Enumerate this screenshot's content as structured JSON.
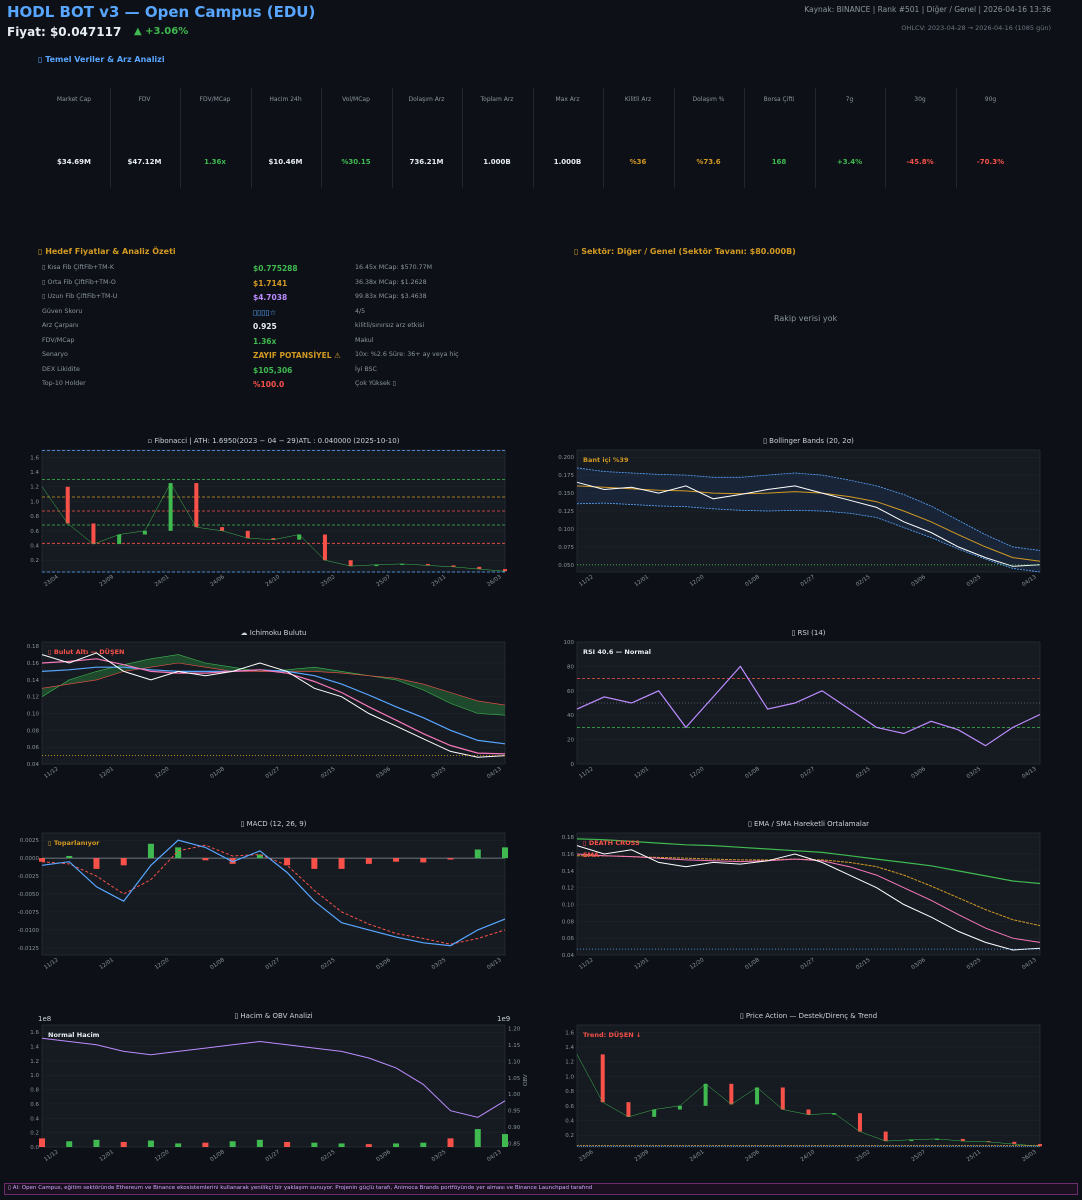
{
  "header": {
    "title": "HODL BOT v3 — Open Campus (EDU)",
    "price": "Fiyat: $0.047117",
    "change": "▲ +3.06%",
    "meta_line1": "Kaynak: BINANCE  |  Rank #501  |  Diğer / Genel  |  2026-04-16 13:36",
    "meta_line2": "OHLCV: 2023-04-28 → 2026-04-16  (1085 gün)"
  },
  "fundamentals": {
    "title": "▯ Temel Veriler & Arz Analizi",
    "metrics": [
      {
        "label": "Market Cap",
        "value": "$34.69M",
        "color": "#e6edf3"
      },
      {
        "label": "FDV",
        "value": "$47.12M",
        "color": "#e6edf3"
      },
      {
        "label": "FDV/MCap",
        "value": "1.36x",
        "color": "#3fb950"
      },
      {
        "label": "Hacim 24h",
        "value": "$10.46M",
        "color": "#e6edf3"
      },
      {
        "label": "Vol/MCap",
        "value": "%30.15",
        "color": "#3fb950"
      },
      {
        "label": "Dolaşım Arz",
        "value": "736.21M",
        "color": "#e6edf3"
      },
      {
        "label": "Toplam Arz",
        "value": "1.000B",
        "color": "#e6edf3"
      },
      {
        "label": "Max Arz",
        "value": "1.000B",
        "color": "#e6edf3"
      },
      {
        "label": "Kilitli Arz",
        "value": "%36",
        "color": "#d29922"
      },
      {
        "label": "Dolaşım %",
        "value": "%73.6",
        "color": "#d29922"
      },
      {
        "label": "Borsa Çifti",
        "value": "168",
        "color": "#3fb950"
      },
      {
        "label": "7g",
        "value": "+3.4%",
        "color": "#3fb950"
      },
      {
        "label": "30g",
        "value": "-45.8%",
        "color": "#f85149"
      },
      {
        "label": "90g",
        "value": "-70.3%",
        "color": "#f85149"
      }
    ]
  },
  "targets": {
    "title": "▯ Hedef Fiyatlar & Analiz Özeti",
    "rows": [
      {
        "label": "▯ Kısa  Fib ÇiftFib+TM-K",
        "value": "$0.775288",
        "value_color": "#3fb950",
        "note": "16.45x   MCap: $570.77M"
      },
      {
        "label": "▯ Orta  Fib ÇiftFib+TM-O",
        "value": "$1.7141",
        "value_color": "#d29922",
        "note": "36.38x   MCap: $1.2628"
      },
      {
        "label": "▯ Uzun  Fib ÇiftFib+TM-U",
        "value": "$4.7038",
        "value_color": "#bc8cff",
        "note": "99.83x   MCap: $3.4638"
      },
      {
        "label": "Güven Skoru",
        "value": "▯▯▯▯☆",
        "value_color": "#58a6ff",
        "note": "4/5"
      },
      {
        "label": "Arz Çarpanı",
        "value": "0.925",
        "value_color": "#e6edf3",
        "note": "kilitli/sınırsız arz etkisi"
      },
      {
        "label": "FDV/MCap",
        "value": "1.36x",
        "value_color": "#3fb950",
        "note": "Makul"
      },
      {
        "label": "Senaryo",
        "value": "ZAYIF POTANSİYEL ⚠",
        "value_color": "#d29922",
        "note": "10x: %2.6  Süre: 36+ ay veya hiç"
      },
      {
        "label": "DEX Likidite",
        "value": "$105,306",
        "value_color": "#3fb950",
        "note": "İyi  BSC"
      },
      {
        "label": "Top-10 Holder",
        "value": "%100.0",
        "value_color": "#f85149",
        "note": "Çok Yüksek ▯"
      }
    ]
  },
  "sector": {
    "title": "▯ Sektör: Diğer / Genel   (Sektör Tavanı: $80.000B)",
    "empty_text": "Rakip verisi yok"
  },
  "colors": {
    "accent": "#58a6ff",
    "up": "#3fb950",
    "down": "#f85149",
    "warn": "#d29922",
    "purple": "#bc8cff",
    "bg": "#0d1117",
    "panel": "#161b22"
  },
  "chart_data": [
    {
      "id": "fib",
      "type": "line",
      "title": "▫ Fibonacci  |  ATH: 1.6950(2023 − 04 − 29)ATL : 0.040000 (2025-10-10)",
      "x_ticks": [
        "23/04",
        "23/09",
        "24/01",
        "24/06",
        "24/10",
        "25/02",
        "25/07",
        "25/11",
        "26/03"
      ],
      "y_ticks": [
        "0.2",
        "0.4",
        "0.6",
        "0.8",
        "1.0",
        "1.2",
        "1.4",
        "1.6"
      ],
      "ylim": [
        0.04,
        1.7
      ],
      "x": [
        "23/04",
        "23/06",
        "23/09",
        "23/11",
        "24/01",
        "24/03",
        "24/04",
        "24/06",
        "24/08",
        "24/10",
        "24/12",
        "25/02",
        "25/04",
        "25/07",
        "25/09",
        "25/11",
        "26/01",
        "26/03",
        "26/04"
      ],
      "close": [
        1.2,
        0.7,
        0.42,
        0.55,
        0.6,
        1.25,
        0.65,
        0.6,
        0.5,
        0.48,
        0.55,
        0.2,
        0.12,
        0.14,
        0.15,
        0.13,
        0.11,
        0.08,
        0.05
      ],
      "fib_levels": [
        1.695,
        1.3,
        1.06,
        0.87,
        0.68,
        0.43,
        0.04
      ],
      "legend": "",
      "legend_pos": "top-left"
    },
    {
      "id": "bb",
      "type": "line",
      "title": "▯ Bollinger Bands (20, 2σ)",
      "annotation": "Bant içi %39",
      "x_ticks": [
        "11/12",
        "12/01",
        "12/20",
        "01/08",
        "01/27",
        "02/15",
        "03/06",
        "03/25",
        "04/13"
      ],
      "y_ticks": [
        "0.050",
        "0.075",
        "0.100",
        "0.125",
        "0.150",
        "0.175",
        "0.200"
      ],
      "ylim": [
        0.04,
        0.21
      ],
      "x": [
        "11/12",
        "11/22",
        "12/01",
        "12/10",
        "12/20",
        "12/30",
        "01/08",
        "01/17",
        "01/27",
        "02/05",
        "02/15",
        "02/25",
        "03/06",
        "03/15",
        "03/25",
        "04/04",
        "04/13",
        "04/16"
      ],
      "close": [
        0.165,
        0.155,
        0.158,
        0.15,
        0.16,
        0.142,
        0.148,
        0.155,
        0.16,
        0.15,
        0.14,
        0.13,
        0.11,
        0.095,
        0.075,
        0.06,
        0.048,
        0.05
      ],
      "sma": [
        0.16,
        0.158,
        0.156,
        0.154,
        0.153,
        0.15,
        0.149,
        0.15,
        0.152,
        0.15,
        0.145,
        0.138,
        0.125,
        0.11,
        0.092,
        0.075,
        0.06,
        0.055
      ],
      "upper": [
        0.185,
        0.18,
        0.178,
        0.176,
        0.175,
        0.172,
        0.172,
        0.175,
        0.178,
        0.175,
        0.168,
        0.16,
        0.148,
        0.132,
        0.112,
        0.092,
        0.075,
        0.07
      ],
      "lower": [
        0.135,
        0.136,
        0.134,
        0.132,
        0.131,
        0.128,
        0.126,
        0.125,
        0.126,
        0.125,
        0.122,
        0.116,
        0.102,
        0.088,
        0.072,
        0.058,
        0.045,
        0.04
      ],
      "support": 0.05
    },
    {
      "id": "ichimoku",
      "type": "line",
      "title": "☁ Ichimoku Bulutu",
      "annotation": "▯ Bulut Altı — DÜŞEN",
      "x_ticks": [
        "11/12",
        "12/01",
        "12/20",
        "01/08",
        "01/27",
        "02/15",
        "03/06",
        "03/25",
        "04/13"
      ],
      "y_ticks": [
        "0.04",
        "0.06",
        "0.08",
        "0.10",
        "0.12",
        "0.14",
        "0.16",
        "0.18"
      ],
      "ylim": [
        0.04,
        0.185
      ],
      "x": [
        "11/12",
        "11/22",
        "12/01",
        "12/10",
        "12/20",
        "12/30",
        "01/08",
        "01/17",
        "01/27",
        "02/05",
        "02/15",
        "02/25",
        "03/06",
        "03/15",
        "03/25",
        "04/04",
        "04/13",
        "04/16"
      ],
      "close": [
        0.17,
        0.16,
        0.172,
        0.15,
        0.14,
        0.15,
        0.145,
        0.15,
        0.16,
        0.15,
        0.13,
        0.12,
        0.1,
        0.085,
        0.07,
        0.055,
        0.048,
        0.05
      ],
      "tenkan": [
        0.16,
        0.162,
        0.165,
        0.158,
        0.15,
        0.148,
        0.148,
        0.15,
        0.152,
        0.148,
        0.138,
        0.125,
        0.108,
        0.092,
        0.076,
        0.062,
        0.053,
        0.052
      ],
      "kijun": [
        0.15,
        0.152,
        0.155,
        0.155,
        0.152,
        0.15,
        0.15,
        0.15,
        0.152,
        0.15,
        0.145,
        0.135,
        0.122,
        0.108,
        0.095,
        0.08,
        0.068,
        0.064
      ],
      "span_a": [
        0.12,
        0.14,
        0.15,
        0.158,
        0.165,
        0.17,
        0.16,
        0.155,
        0.15,
        0.152,
        0.155,
        0.15,
        0.145,
        0.14,
        0.128,
        0.112,
        0.1,
        0.098
      ],
      "span_b": [
        0.13,
        0.135,
        0.14,
        0.15,
        0.155,
        0.16,
        0.155,
        0.15,
        0.15,
        0.15,
        0.15,
        0.148,
        0.145,
        0.142,
        0.135,
        0.125,
        0.115,
        0.11
      ]
    },
    {
      "id": "rsi",
      "type": "line",
      "title": "▯ RSI (14)",
      "annotation": "RSI 40.6 — Normal",
      "x_ticks": [
        "11/12",
        "12/01",
        "12/20",
        "01/08",
        "01/27",
        "02/15",
        "03/06",
        "03/25",
        "04/13"
      ],
      "y_ticks": [
        "0",
        "20",
        "40",
        "60",
        "80",
        "100"
      ],
      "ylim": [
        0,
        100
      ],
      "x": [
        "11/12",
        "11/22",
        "12/01",
        "12/10",
        "12/20",
        "12/30",
        "01/08",
        "01/17",
        "01/27",
        "02/05",
        "02/15",
        "02/25",
        "03/06",
        "03/15",
        "03/25",
        "04/04",
        "04/13",
        "04/16"
      ],
      "rsi": [
        45,
        55,
        50,
        60,
        30,
        55,
        80,
        45,
        50,
        60,
        45,
        30,
        25,
        35,
        28,
        15,
        30,
        40.6
      ],
      "overbought": 70,
      "oversold": 30
    },
    {
      "id": "macd",
      "type": "line",
      "title": "▯ MACD (12, 26, 9)",
      "annotation": "▯ Toparlanıyor",
      "x_ticks": [
        "11/12",
        "12/01",
        "12/20",
        "01/08",
        "01/27",
        "02/15",
        "03/06",
        "03/25",
        "04/13"
      ],
      "y_ticks": [
        "-0.0125",
        "-0.0100",
        "-0.0075",
        "-0.0050",
        "-0.0025",
        "0.0000",
        "0.0025"
      ],
      "ylim": [
        -0.0135,
        0.0035
      ],
      "x": [
        "11/12",
        "11/22",
        "12/01",
        "12/10",
        "12/20",
        "12/30",
        "01/08",
        "01/17",
        "01/27",
        "02/05",
        "02/15",
        "02/25",
        "03/06",
        "03/15",
        "03/25",
        "04/04",
        "04/13",
        "04/16"
      ],
      "macd": [
        -0.001,
        -0.0005,
        -0.004,
        -0.006,
        -0.001,
        0.0025,
        0.0015,
        -0.0005,
        0.001,
        -0.002,
        -0.006,
        -0.009,
        -0.01,
        -0.011,
        -0.0118,
        -0.0122,
        -0.01,
        -0.0085
      ],
      "signal": [
        -0.0005,
        -0.0008,
        -0.0025,
        -0.005,
        -0.003,
        0.001,
        0.0018,
        0.0003,
        0.0005,
        -0.001,
        -0.0045,
        -0.0075,
        -0.0092,
        -0.0105,
        -0.0112,
        -0.012,
        -0.0112,
        -0.01
      ]
    },
    {
      "id": "ema",
      "type": "line",
      "title": "▯ EMA / SMA Hareketli Ortalamalar",
      "annotation": "▯ DEATH CROSS",
      "annotation2": "EMA",
      "x_ticks": [
        "11/12",
        "12/01",
        "12/20",
        "01/08",
        "01/27",
        "02/15",
        "03/06",
        "03/25",
        "04/13"
      ],
      "y_ticks": [
        "0.04",
        "0.06",
        "0.08",
        "0.10",
        "0.12",
        "0.14",
        "0.16",
        "0.18"
      ],
      "ylim": [
        0.04,
        0.185
      ],
      "x": [
        "11/12",
        "11/22",
        "12/01",
        "12/10",
        "12/20",
        "12/30",
        "01/08",
        "01/17",
        "01/27",
        "02/05",
        "02/15",
        "02/25",
        "03/06",
        "03/15",
        "03/25",
        "04/04",
        "04/13",
        "04/16"
      ],
      "close": [
        0.17,
        0.16,
        0.165,
        0.15,
        0.145,
        0.15,
        0.148,
        0.152,
        0.16,
        0.15,
        0.135,
        0.12,
        0.1,
        0.085,
        0.068,
        0.055,
        0.046,
        0.048
      ],
      "ema_fast": [
        0.16,
        0.158,
        0.157,
        0.155,
        0.153,
        0.152,
        0.151,
        0.152,
        0.154,
        0.152,
        0.145,
        0.135,
        0.12,
        0.105,
        0.088,
        0.072,
        0.06,
        0.055
      ],
      "ema_slow": [
        0.158,
        0.158,
        0.157,
        0.156,
        0.155,
        0.154,
        0.153,
        0.153,
        0.154,
        0.153,
        0.15,
        0.145,
        0.135,
        0.122,
        0.108,
        0.094,
        0.082,
        0.075
      ],
      "sma_long": [
        0.178,
        0.177,
        0.175,
        0.173,
        0.171,
        0.17,
        0.168,
        0.166,
        0.164,
        0.162,
        0.158,
        0.154,
        0.15,
        0.146,
        0.14,
        0.134,
        0.128,
        0.125
      ],
      "support": 0.047
    },
    {
      "id": "volume",
      "type": "bar",
      "title": "▯ Hacim & OBV Analizi",
      "annotation": "Normal Hacim",
      "left_scale_label": "1e8",
      "right_scale_label": "1e9",
      "right_axis_label": "OBV",
      "x_ticks": [
        "11/12",
        "12/01",
        "12/20",
        "01/08",
        "01/27",
        "02/15",
        "03/06",
        "03/25",
        "04/13"
      ],
      "y_ticks": [
        "0.0",
        "0.2",
        "0.4",
        "0.6",
        "0.8",
        "1.0",
        "1.2",
        "1.4",
        "1.6"
      ],
      "y2_ticks": [
        "0.85",
        "0.90",
        "0.95",
        "1.00",
        "1.05",
        "1.10",
        "1.15",
        "1.20"
      ],
      "ylim": [
        0,
        1.7
      ],
      "y2lim": [
        0.84,
        1.21
      ],
      "x": [
        "11/12",
        "11/22",
        "12/01",
        "12/10",
        "12/20",
        "12/30",
        "01/08",
        "01/17",
        "01/27",
        "02/05",
        "02/15",
        "02/25",
        "03/06",
        "03/15",
        "03/25",
        "04/04",
        "04/13",
        "04/16"
      ],
      "volume": [
        0.12,
        0.08,
        0.1,
        0.07,
        0.09,
        0.05,
        0.06,
        0.08,
        0.1,
        0.07,
        0.06,
        0.05,
        0.04,
        0.05,
        0.06,
        0.12,
        0.25,
        0.18
      ],
      "obv": [
        1.17,
        1.16,
        1.15,
        1.13,
        1.12,
        1.13,
        1.14,
        1.15,
        1.16,
        1.15,
        1.14,
        1.13,
        1.11,
        1.08,
        1.03,
        0.95,
        0.93,
        0.98
      ]
    },
    {
      "id": "price_action",
      "type": "line",
      "title": "▯ Price Action — Destek/Direnç & Trend",
      "annotation": "Trend: DÜŞEN ↓",
      "x_ticks": [
        "23/06",
        "23/09",
        "24/01",
        "24/06",
        "24/10",
        "25/02",
        "25/07",
        "25/11",
        "26/03"
      ],
      "y_ticks": [
        "0.2",
        "0.4",
        "0.6",
        "0.8",
        "1.0",
        "1.2",
        "1.4",
        "1.6"
      ],
      "ylim": [
        0.04,
        1.7
      ],
      "x": [
        "23/04",
        "23/06",
        "23/09",
        "23/11",
        "24/01",
        "24/03",
        "24/04",
        "24/06",
        "24/08",
        "24/10",
        "24/12",
        "25/02",
        "25/04",
        "25/07",
        "25/09",
        "25/11",
        "26/01",
        "26/03",
        "26/04"
      ],
      "close": [
        1.3,
        0.65,
        0.45,
        0.55,
        0.6,
        0.9,
        0.62,
        0.85,
        0.55,
        0.48,
        0.5,
        0.25,
        0.12,
        0.14,
        0.15,
        0.12,
        0.11,
        0.08,
        0.05
      ]
    }
  ],
  "footer": "▯ AI: Open Campus, eğitim sektöründe Ethereum ve Binance ekosistemlerini kullanarak yenilikçi bir yaklaşım sunuyor. Projenin güçlü tarafı, Animoca Brands portföyünde yer alması ve Binance Launchpad tarafınd"
}
